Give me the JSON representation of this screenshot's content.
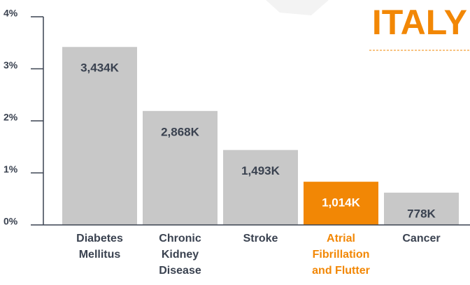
{
  "chart_data": {
    "type": "bar",
    "title": "ITALY",
    "categories": [
      [
        "Diabetes",
        "Mellitus"
      ],
      [
        "Chronic",
        "Kidney",
        "Disease"
      ],
      [
        "Stroke"
      ],
      [
        "Atrial",
        "Fibrillation",
        "and Flutter"
      ],
      [
        "Cancer"
      ]
    ],
    "values": [
      3.42,
      2.19,
      1.44,
      0.83,
      0.62
    ],
    "annotations": [
      "3,434K",
      "2,868K",
      "1,493K",
      "1,014K",
      "778K"
    ],
    "colors": [
      "#c8c8c8",
      "#c8c8c8",
      "#c8c8c8",
      "#f28705",
      "#c8c8c8"
    ],
    "highlight_color": "#f28705",
    "highlight": 3,
    "ylim": [
      0,
      4
    ],
    "yticks": [
      {
        "value": 0,
        "label": "0%"
      },
      {
        "value": 1,
        "label": "1%"
      },
      {
        "value": 2,
        "label": "2%"
      },
      {
        "value": 3,
        "label": "3%"
      },
      {
        "value": 4,
        "label": "4%"
      }
    ]
  }
}
